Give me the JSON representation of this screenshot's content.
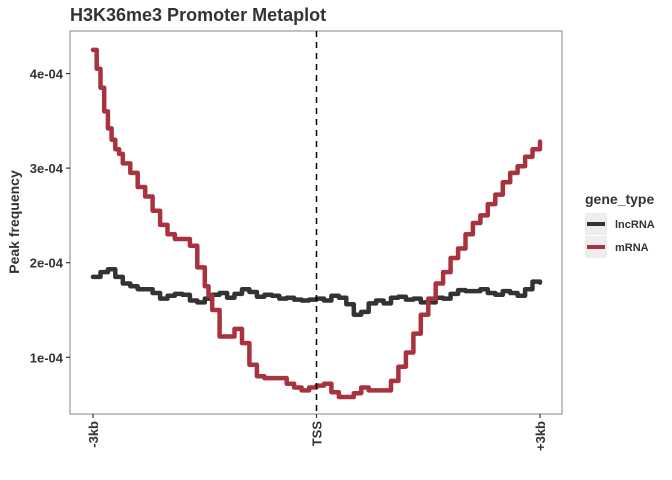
{
  "chart_data": {
    "type": "line",
    "title": "H3K36me3 Promoter Metaplot",
    "xlabel": "",
    "ylabel": "Peak frequency",
    "xlim": [
      -3000,
      3000
    ],
    "ylim": [
      4e-05,
      0.000445
    ],
    "x_ticks": [
      {
        "value": -3000,
        "label": "-3kb"
      },
      {
        "value": 0,
        "label": "TSS"
      },
      {
        "value": 3000,
        "label": "+3kb"
      }
    ],
    "y_ticks": [
      {
        "value": 0.0001,
        "label": "1e-04"
      },
      {
        "value": 0.0002,
        "label": "2e-04"
      },
      {
        "value": 0.0003,
        "label": "3e-04"
      },
      {
        "value": 0.0004,
        "label": "4e-04"
      }
    ],
    "vline": {
      "x": 0,
      "style": "dashed",
      "color": "#000000"
    },
    "grid": false,
    "legend": {
      "title": "gene_type",
      "position": "right"
    },
    "series": [
      {
        "name": "lncRNA",
        "color": "#333333",
        "x": [
          -3000,
          -2900,
          -2800,
          -2700,
          -2600,
          -2500,
          -2400,
          -2300,
          -2200,
          -2100,
          -2000,
          -1900,
          -1800,
          -1700,
          -1600,
          -1500,
          -1400,
          -1300,
          -1200,
          -1100,
          -1000,
          -900,
          -800,
          -700,
          -600,
          -500,
          -400,
          -300,
          -200,
          -100,
          0,
          100,
          200,
          300,
          400,
          500,
          600,
          700,
          800,
          900,
          1000,
          1100,
          1200,
          1300,
          1400,
          1500,
          1600,
          1700,
          1800,
          1900,
          2000,
          2100,
          2200,
          2300,
          2400,
          2500,
          2600,
          2700,
          2800,
          2900,
          3000
        ],
        "values": [
          0.000185,
          0.00019,
          0.000193,
          0.000185,
          0.000178,
          0.000175,
          0.000172,
          0.000172,
          0.000168,
          0.000162,
          0.000165,
          0.000167,
          0.000166,
          0.00016,
          0.000158,
          0.000162,
          0.000166,
          0.000168,
          0.000163,
          0.000167,
          0.000172,
          0.000169,
          0.000164,
          0.000166,
          0.000165,
          0.000162,
          0.000163,
          0.000161,
          0.00016,
          0.000161,
          0.000162,
          0.00016,
          0.000165,
          0.000163,
          0.000156,
          0.000145,
          0.000148,
          0.000157,
          0.00016,
          0.000157,
          0.000163,
          0.000164,
          0.000161,
          0.000162,
          0.000158,
          0.000158,
          0.000163,
          0.000162,
          0.000167,
          0.000171,
          0.00017,
          0.00017,
          0.000172,
          0.000168,
          0.000166,
          0.00017,
          0.000168,
          0.000165,
          0.000172,
          0.00018,
          0.000179
        ]
      },
      {
        "name": "mRNA",
        "color": "#a8323e",
        "x": [
          -3000,
          -2950,
          -2900,
          -2850,
          -2800,
          -2750,
          -2700,
          -2650,
          -2600,
          -2500,
          -2400,
          -2300,
          -2200,
          -2100,
          -2000,
          -1900,
          -1800,
          -1700,
          -1600,
          -1500,
          -1450,
          -1400,
          -1300,
          -1200,
          -1100,
          -1000,
          -900,
          -800,
          -700,
          -600,
          -500,
          -400,
          -300,
          -200,
          -100,
          0,
          100,
          200,
          300,
          400,
          500,
          600,
          700,
          800,
          900,
          1000,
          1100,
          1200,
          1300,
          1400,
          1500,
          1600,
          1700,
          1800,
          1900,
          2000,
          2100,
          2200,
          2300,
          2400,
          2500,
          2600,
          2700,
          2800,
          2900,
          3000
        ],
        "values": [
          0.000425,
          0.000405,
          0.000385,
          0.00036,
          0.000342,
          0.00033,
          0.00032,
          0.000315,
          0.000305,
          0.000295,
          0.00028,
          0.00027,
          0.000255,
          0.00024,
          0.00023,
          0.000225,
          0.000225,
          0.000218,
          0.000195,
          0.000175,
          0.000165,
          0.00015,
          0.000122,
          0.000122,
          0.00013,
          0.000115,
          9.2e-05,
          8e-05,
          7.8e-05,
          7.8e-05,
          7.8e-05,
          7.2e-05,
          6.8e-05,
          6.5e-05,
          6.8e-05,
          7e-05,
          7.2e-05,
          6.3e-05,
          5.8e-05,
          5.8e-05,
          6.2e-05,
          6.8e-05,
          6.5e-05,
          6.5e-05,
          6.5e-05,
          7.5e-05,
          9e-05,
          0.000105,
          0.000125,
          0.000145,
          0.000162,
          0.000178,
          0.00019,
          0.000205,
          0.000215,
          0.00023,
          0.000242,
          0.00025,
          0.000262,
          0.000272,
          0.000285,
          0.000295,
          0.000302,
          0.000312,
          0.00032,
          0.000328
        ]
      }
    ]
  }
}
